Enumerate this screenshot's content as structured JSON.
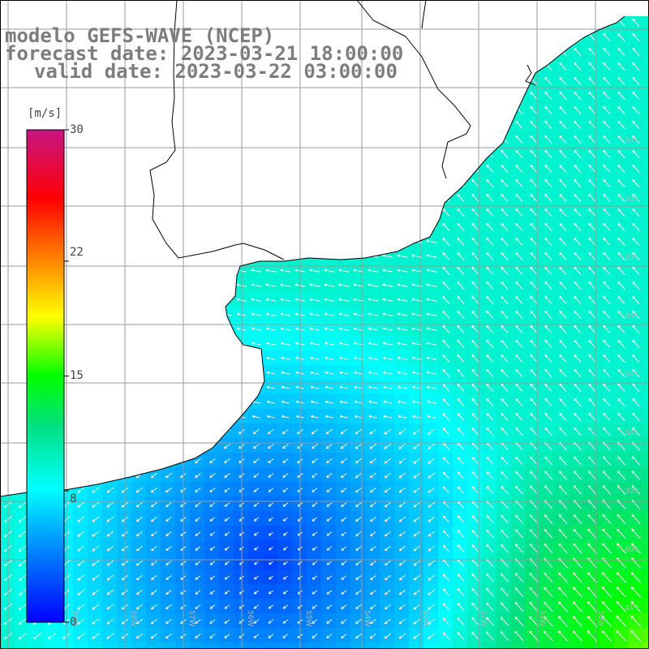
{
  "title": {
    "line1": "modelo GEFS-WAVE (NCEP)",
    "line2": "forecast date: 2023-03-21 18:00:00",
    "line3": "valid date: 2023-03-22 03:00:00"
  },
  "colorbar": {
    "unit": "[m/s]",
    "ticks": [
      "30",
      "22",
      "15",
      "8",
      "0"
    ],
    "tick_values": [
      30,
      22,
      15,
      8,
      0
    ],
    "range": [
      0,
      30
    ],
    "colors": [
      "#0000ff",
      "#00bfff",
      "#00ffff",
      "#00ff00",
      "#ffff00",
      "#ff8000",
      "#ff0000",
      "#c71585"
    ]
  },
  "map": {
    "longitude_labels": [
      "59W",
      "58W",
      "57W",
      "56W",
      "55W",
      "54W",
      "53W",
      "52W",
      "51W",
      "50W"
    ],
    "latitude_labels": [
      "33S",
      "34S",
      "35S",
      "36S",
      "37S",
      "38S",
      "39S",
      "40S",
      "41S"
    ],
    "land_color": "#ffffff",
    "coastline_color": "#000000",
    "grid_color": "#9a9a9a",
    "arrow_color": "#ffffff"
  }
}
